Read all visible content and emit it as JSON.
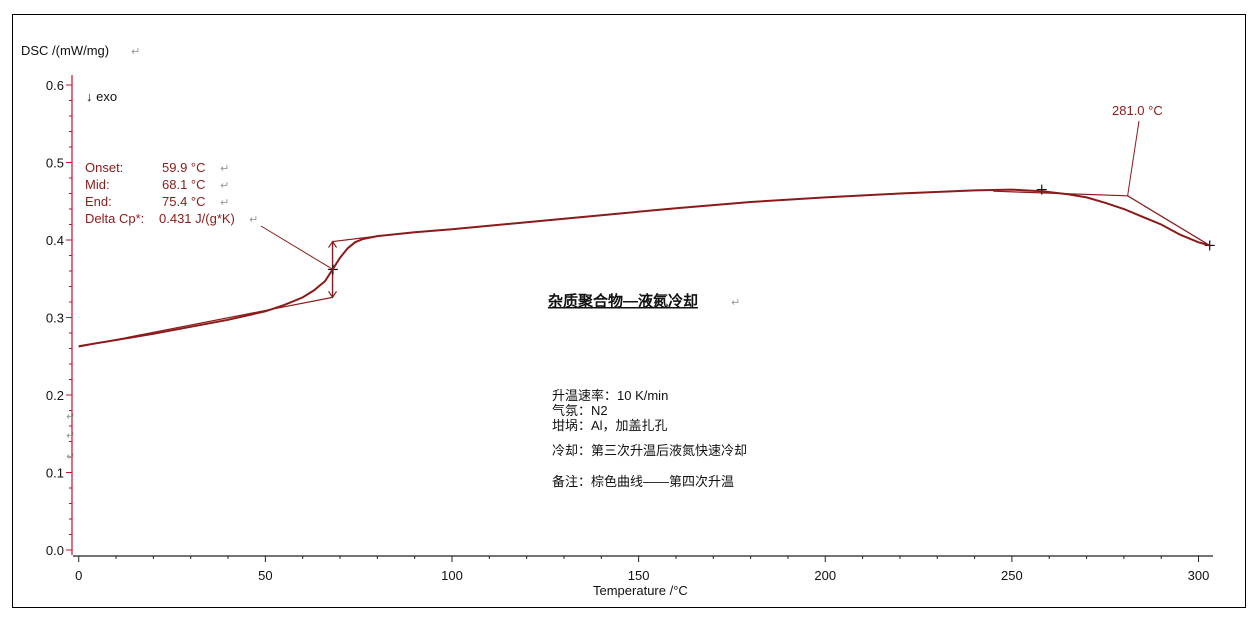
{
  "chart_data": {
    "type": "line",
    "ylabel": "DSC /(mW/mg)",
    "xlabel": "Temperature /°C",
    "xlim": [
      -1,
      302
    ],
    "ylim": [
      0.0,
      0.6
    ],
    "x_ticks": [
      "0",
      "50",
      "100",
      "150",
      "200",
      "250",
      "300"
    ],
    "y_ticks": [
      "0.0",
      "0.1",
      "0.2",
      "0.3",
      "0.4",
      "0.5",
      "0.6"
    ],
    "grid": false,
    "exo_label": "↓ exo",
    "series": [
      {
        "color": "#8b1a1a",
        "x": [
          0,
          10,
          20,
          30,
          40,
          50,
          55,
          60,
          63,
          66,
          68,
          70,
          72,
          74,
          76,
          80,
          90,
          100,
          120,
          140,
          160,
          180,
          200,
          220,
          240,
          250,
          258,
          265,
          270,
          275,
          280,
          285,
          290,
          295,
          300,
          303
        ],
        "y": [
          0.263,
          0.271,
          0.279,
          0.288,
          0.297,
          0.308,
          0.316,
          0.326,
          0.335,
          0.347,
          0.362,
          0.377,
          0.389,
          0.397,
          0.401,
          0.405,
          0.41,
          0.414,
          0.423,
          0.432,
          0.441,
          0.449,
          0.455,
          0.46,
          0.464,
          0.465,
          0.463,
          0.459,
          0.455,
          0.448,
          0.44,
          0.43,
          0.42,
          0.407,
          0.397,
          0.393
        ]
      }
    ],
    "glass_transition": {
      "onset_label": "Onset:",
      "onset_value": "59.9 °C",
      "mid_label": "Mid:",
      "mid_value": "68.1 °C",
      "end_label": "End:",
      "end_value": "75.4 °C",
      "dcp_label": "Delta Cp*:",
      "dcp_value": "0.431 J/(g*K)",
      "tangent_low": {
        "x": [
          0,
          68
        ],
        "y": [
          0.262,
          0.326
        ]
      },
      "tangent_high": {
        "x": [
          68,
          80
        ],
        "y": [
          0.398,
          0.405
        ]
      },
      "bracket": {
        "x": 68,
        "y": [
          0.326,
          0.398
        ]
      },
      "midpoint": {
        "x": 68.1,
        "y": 0.362
      }
    },
    "peak_annotation": {
      "label": "281.0 °C",
      "point": {
        "x": 281.0,
        "y": 0.457
      },
      "tangent_left": {
        "x": [
          245,
          281
        ],
        "y": [
          0.463,
          0.457
        ]
      },
      "tangent_right": {
        "x": [
          281,
          303
        ],
        "y": [
          0.457,
          0.393
        ]
      },
      "markers": [
        {
          "x": 258,
          "y": 0.465
        },
        {
          "x": 303,
          "y": 0.393
        }
      ]
    }
  },
  "heading": "杂质聚合物—液氮冷却",
  "conditions": [
    "升温速率：10 K/min",
    "气氛：N2",
    "坩埚：Al，加盖扎孔",
    "冷却：第三次升温后液氮快速冷却",
    "备注：棕色曲线——第四次升温"
  ]
}
